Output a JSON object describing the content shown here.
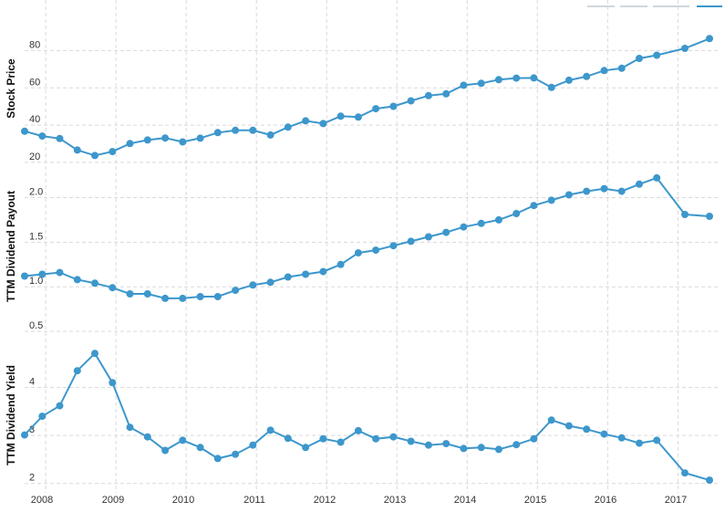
{
  "chart_data": [
    {
      "type": "line",
      "ylabel": "Stock Price",
      "ylim": [
        18,
        90
      ],
      "yticks": [
        20,
        40,
        60,
        80
      ],
      "ytick_labels": [
        "20",
        "40",
        "60",
        "80"
      ],
      "x": [
        2008.0,
        2008.25,
        2008.5,
        2008.75,
        2009.0,
        2009.25,
        2009.5,
        2009.75,
        2010.0,
        2010.25,
        2010.5,
        2010.75,
        2011.0,
        2011.25,
        2011.5,
        2011.75,
        2012.0,
        2012.25,
        2012.5,
        2012.75,
        2013.0,
        2013.25,
        2013.5,
        2013.75,
        2014.0,
        2014.25,
        2014.5,
        2014.75,
        2015.0,
        2015.25,
        2015.5,
        2015.75,
        2016.0,
        2016.25,
        2016.5,
        2016.75,
        2017.0,
        2017.4,
        2017.75
      ],
      "values": [
        36.7,
        34.1,
        32.8,
        26.6,
        23.7,
        25.8,
        30.1,
        32.0,
        33.1,
        31.0,
        33.0,
        36.0,
        37.2,
        37.2,
        34.7,
        38.9,
        42.3,
        40.8,
        44.8,
        44.3,
        48.8,
        50.1,
        53.0,
        55.8,
        56.8,
        61.4,
        62.4,
        64.4,
        65.2,
        65.3,
        60.2,
        64.1,
        66.1,
        69.3,
        70.5,
        75.8,
        77.5,
        81.2,
        86.4
      ]
    },
    {
      "type": "line",
      "ylabel": "TTM Dividend Payout",
      "ylim": [
        0.45,
        2.25
      ],
      "yticks": [
        0.5,
        1.0,
        1.5,
        2.0
      ],
      "ytick_labels": [
        "0.5",
        "1.0",
        "1.5",
        "2.0"
      ],
      "x": [
        2008.0,
        2008.25,
        2008.5,
        2008.75,
        2009.0,
        2009.25,
        2009.5,
        2009.75,
        2010.0,
        2010.25,
        2010.5,
        2010.75,
        2011.0,
        2011.25,
        2011.5,
        2011.75,
        2012.0,
        2012.25,
        2012.5,
        2012.75,
        2013.0,
        2013.25,
        2013.5,
        2013.75,
        2014.0,
        2014.25,
        2014.5,
        2014.75,
        2015.0,
        2015.25,
        2015.5,
        2015.75,
        2016.0,
        2016.25,
        2016.5,
        2016.75,
        2017.0,
        2017.4,
        2017.75
      ],
      "values": [
        1.12,
        1.14,
        1.16,
        1.08,
        1.04,
        0.99,
        0.92,
        0.92,
        0.87,
        0.87,
        0.89,
        0.89,
        0.96,
        1.02,
        1.05,
        1.11,
        1.14,
        1.17,
        1.25,
        1.38,
        1.41,
        1.46,
        1.51,
        1.56,
        1.61,
        1.67,
        1.71,
        1.75,
        1.82,
        1.91,
        1.97,
        2.03,
        2.07,
        2.1,
        2.07,
        2.15,
        2.22,
        1.81,
        1.79
      ]
    },
    {
      "type": "line",
      "ylabel": "TTM Dividend Yield",
      "ylim": [
        1.9,
        5.0
      ],
      "yticks": [
        2,
        3,
        4
      ],
      "ytick_labels": [
        "2",
        "3",
        "4"
      ],
      "xticks": [
        2008,
        2009,
        2010,
        2011,
        2012,
        2013,
        2014,
        2015,
        2016,
        2017
      ],
      "xtick_labels": [
        "2008",
        "2009",
        "2010",
        "2011",
        "2012",
        "2013",
        "2014",
        "2015",
        "2016",
        "2017"
      ],
      "x": [
        2008.0,
        2008.25,
        2008.5,
        2008.75,
        2009.0,
        2009.25,
        2009.5,
        2009.75,
        2010.0,
        2010.25,
        2010.5,
        2010.75,
        2011.0,
        2011.25,
        2011.5,
        2011.75,
        2012.0,
        2012.25,
        2012.5,
        2012.75,
        2013.0,
        2013.25,
        2013.5,
        2013.75,
        2014.0,
        2014.25,
        2014.5,
        2014.75,
        2015.0,
        2015.25,
        2015.5,
        2015.75,
        2016.0,
        2016.25,
        2016.5,
        2016.75,
        2017.0,
        2017.4,
        2017.75
      ],
      "values": [
        3.01,
        3.4,
        3.62,
        4.35,
        4.71,
        4.1,
        3.17,
        2.97,
        2.69,
        2.9,
        2.75,
        2.52,
        2.61,
        2.8,
        3.11,
        2.94,
        2.75,
        2.93,
        2.86,
        3.1,
        2.93,
        2.97,
        2.88,
        2.8,
        2.83,
        2.73,
        2.75,
        2.71,
        2.81,
        2.93,
        3.32,
        3.2,
        3.13,
        3.03,
        2.95,
        2.84,
        2.9,
        2.22,
        2.07
      ]
    }
  ],
  "colors": {
    "line": "#3d97cc",
    "grid": "#d9d9d9",
    "text": "#333333"
  }
}
